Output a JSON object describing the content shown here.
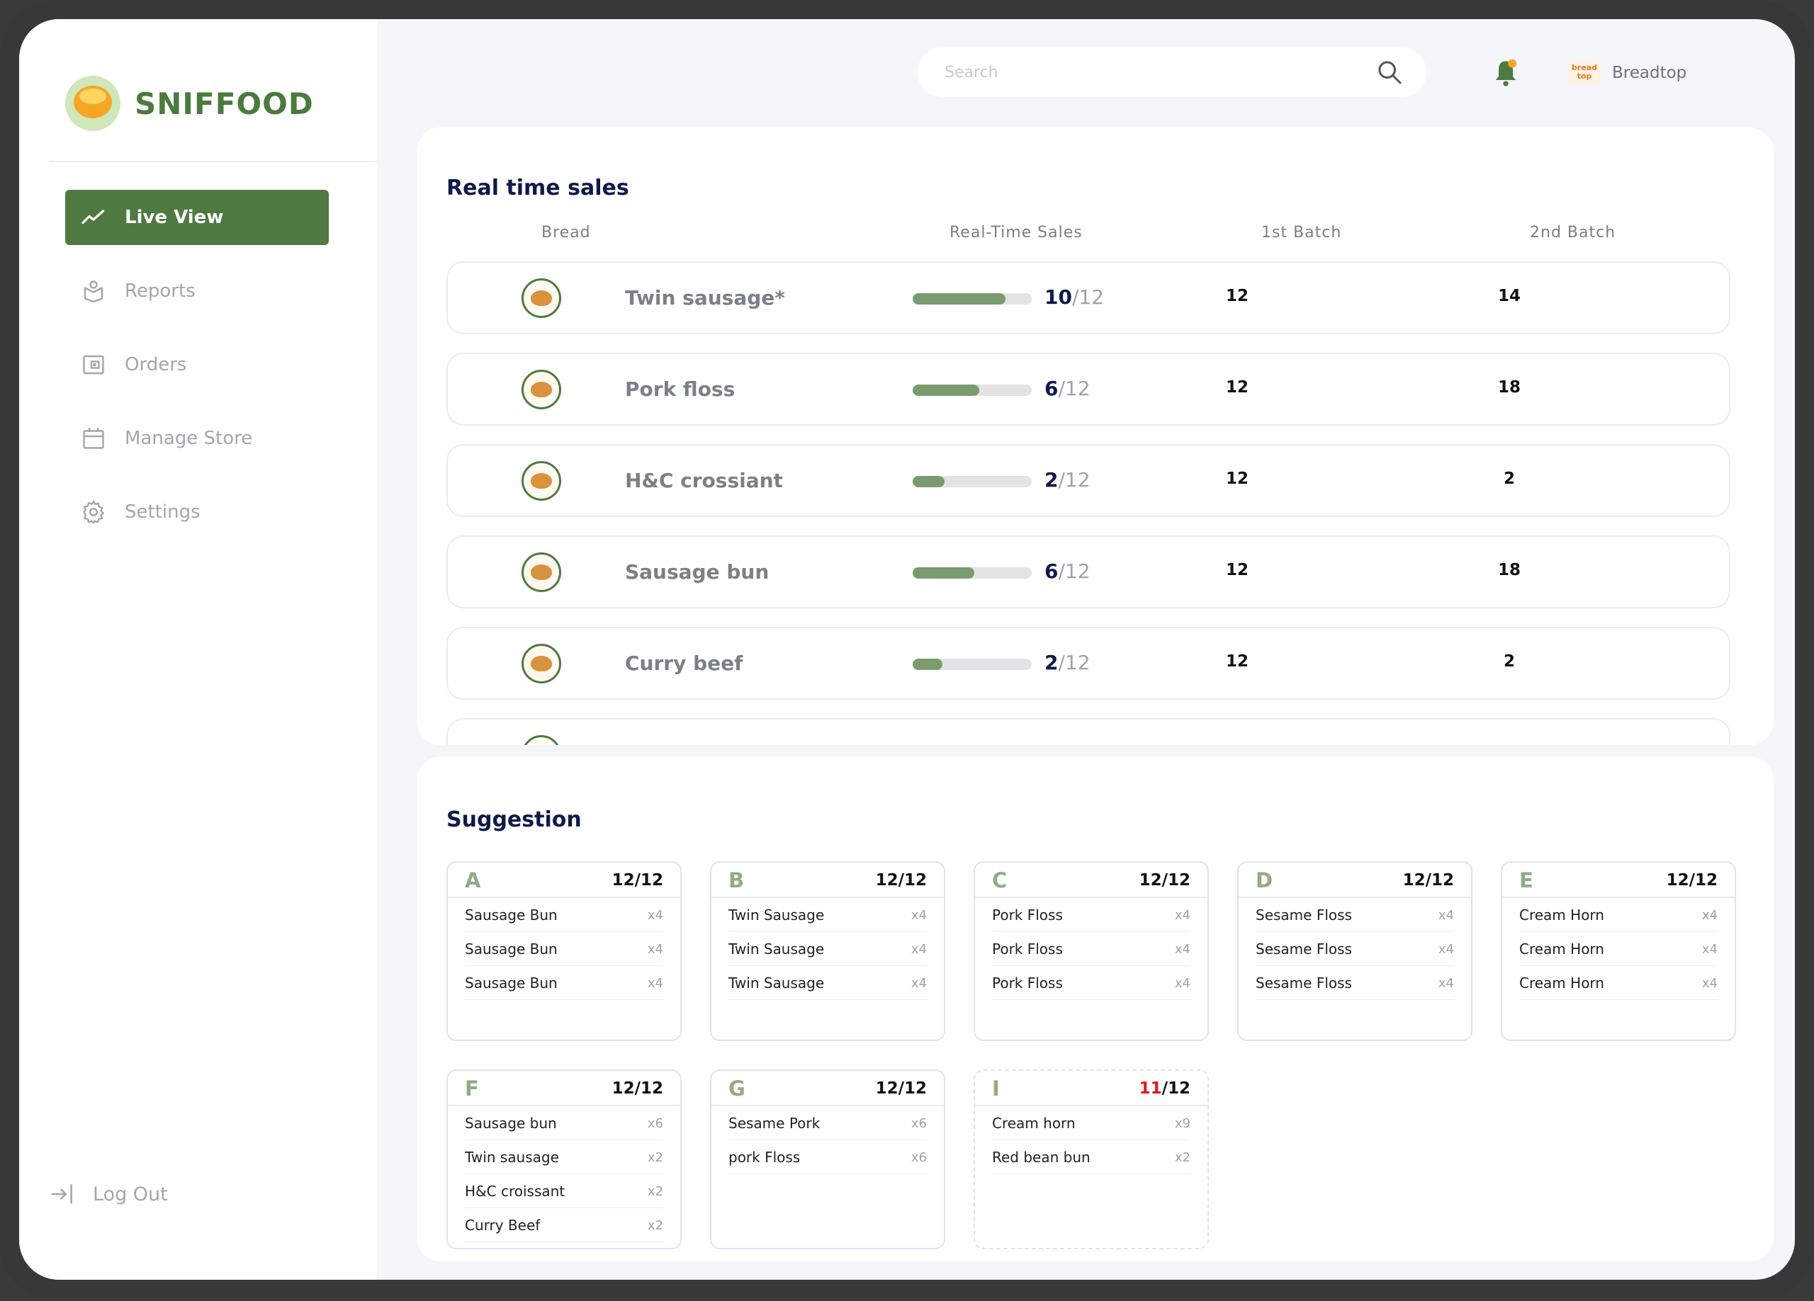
{
  "app": {
    "name": "SNIFFOOD"
  },
  "nav": {
    "items": [
      {
        "label": "Live View",
        "icon": "trend-line-icon",
        "active": true
      },
      {
        "label": "Reports",
        "icon": "report-icon",
        "active": false
      },
      {
        "label": "Orders",
        "icon": "wallet-icon",
        "active": false
      },
      {
        "label": "Manage Store",
        "icon": "calendar-icon",
        "active": false
      },
      {
        "label": "Settings",
        "icon": "gear-icon",
        "active": false
      }
    ],
    "logout": "Log Out"
  },
  "header": {
    "search_placeholder": "Search",
    "brand_logo_text": "bread top",
    "brand_name": "Breadtop"
  },
  "sales": {
    "title": "Real time sales",
    "columns": {
      "bread": "Bread",
      "realtime": "Real-Time Sales",
      "batch1": "1st Batch",
      "batch2": "2nd Batch"
    },
    "rows": [
      {
        "name": "Twin sausage*",
        "sold": "10",
        "total": "/12",
        "progress": 0.78,
        "batch1": "12",
        "batch2": "14"
      },
      {
        "name": "Pork floss",
        "sold": "6",
        "total": "/12",
        "progress": 0.56,
        "batch1": "12",
        "batch2": "18"
      },
      {
        "name": "H&C crossiant",
        "sold": "2",
        "total": "/12",
        "progress": 0.27,
        "batch1": "12",
        "batch2": "2"
      },
      {
        "name": "Sausage bun",
        "sold": "6",
        "total": "/12",
        "progress": 0.52,
        "batch1": "12",
        "batch2": "18"
      },
      {
        "name": "Curry beef",
        "sold": "2",
        "total": "/12",
        "progress": 0.25,
        "batch1": "12",
        "batch2": "2"
      }
    ]
  },
  "suggestion": {
    "title": "Suggestion",
    "boxes": [
      {
        "letter": "A",
        "count_num": "12",
        "count_den": "/12",
        "count_alert": false,
        "items": [
          {
            "name": "Sausage Bun",
            "qty": "x4"
          },
          {
            "name": "Sausage Bun",
            "qty": "x4"
          },
          {
            "name": "Sausage Bun",
            "qty": "x4"
          }
        ]
      },
      {
        "letter": "B",
        "count_num": "12",
        "count_den": "/12",
        "count_alert": false,
        "items": [
          {
            "name": "Twin Sausage",
            "qty": "x4"
          },
          {
            "name": "Twin Sausage",
            "qty": "x4"
          },
          {
            "name": "Twin Sausage",
            "qty": "x4"
          }
        ]
      },
      {
        "letter": "C",
        "count_num": "12",
        "count_den": "/12",
        "count_alert": false,
        "items": [
          {
            "name": "Pork Floss",
            "qty": "x4"
          },
          {
            "name": "Pork Floss",
            "qty": "x4"
          },
          {
            "name": "Pork Floss",
            "qty": "x4"
          }
        ]
      },
      {
        "letter": "D",
        "count_num": "12",
        "count_den": "/12",
        "count_alert": false,
        "items": [
          {
            "name": "Sesame Floss",
            "qty": "x4"
          },
          {
            "name": "Sesame Floss",
            "qty": "x4"
          },
          {
            "name": "Sesame Floss",
            "qty": "x4"
          }
        ]
      },
      {
        "letter": "E",
        "count_num": "12",
        "count_den": "/12",
        "count_alert": false,
        "items": [
          {
            "name": "Cream Horn",
            "qty": "x4"
          },
          {
            "name": "Cream Horn",
            "qty": "x4"
          },
          {
            "name": "Cream Horn",
            "qty": "x4"
          }
        ]
      },
      {
        "letter": "F",
        "count_num": "12",
        "count_den": "/12",
        "count_alert": false,
        "items": [
          {
            "name": "Sausage bun",
            "qty": "x6"
          },
          {
            "name": "Twin sausage",
            "qty": "x2"
          },
          {
            "name": "H&C croissant",
            "qty": "x2"
          },
          {
            "name": "Curry Beef",
            "qty": "x2"
          }
        ]
      },
      {
        "letter": "G",
        "count_num": "12",
        "count_den": "/12",
        "count_alert": false,
        "items": [
          {
            "name": "Sesame Pork",
            "qty": "x6"
          },
          {
            "name": "pork Floss",
            "qty": "x6"
          }
        ]
      },
      {
        "letter": "I",
        "count_num": "11",
        "count_den": "/12",
        "count_alert": true,
        "items": [
          {
            "name": "Cream horn",
            "qty": "x9"
          },
          {
            "name": "Red bean bun",
            "qty": "x2"
          }
        ]
      }
    ]
  },
  "colors": {
    "accent": "#4e7a42",
    "progress": "#7a9b6f",
    "alert": "#e01b1b",
    "title": "#0f1a4a"
  }
}
